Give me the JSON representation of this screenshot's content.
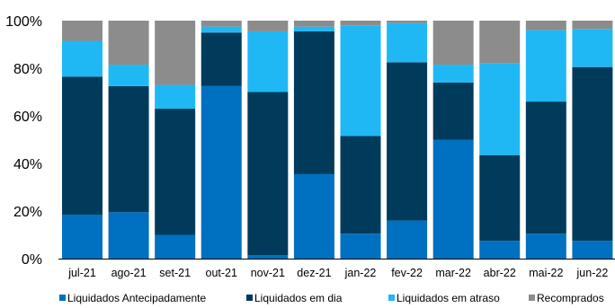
{
  "chart_data": {
    "type": "bar",
    "stacked": true,
    "percent_stacked": true,
    "categories": [
      "jul-21",
      "ago-21",
      "set-21",
      "out-21",
      "nov-21",
      "dez-21",
      "jan-22",
      "fev-22",
      "mar-22",
      "abr-22",
      "mai-22",
      "jun-22"
    ],
    "y_ticks": [
      "0%",
      "20%",
      "40%",
      "60%",
      "80%",
      "100%"
    ],
    "ylim": [
      0,
      100
    ],
    "grid": false,
    "legend_position": "bottom",
    "series": [
      {
        "name": "Liquidados Antecipadamente",
        "color": "#0070C0",
        "values": [
          18.5,
          19.5,
          10,
          72.5,
          1.5,
          35.5,
          10.5,
          16,
          50,
          7.5,
          10.5,
          7.5
        ]
      },
      {
        "name": "Liquidados em dia",
        "color": "#003B5C",
        "values": [
          58,
          53,
          53,
          22.5,
          68.5,
          60,
          41,
          66.5,
          24,
          36,
          55.5,
          73
        ]
      },
      {
        "name": "Liquidados em atraso",
        "color": "#1FB8F5",
        "values": [
          15,
          9,
          10,
          2.5,
          25.5,
          2,
          46.5,
          16.5,
          7.5,
          38.5,
          30,
          16
        ]
      },
      {
        "name": "Recomprados",
        "color": "#8C8C8C",
        "values": [
          8.5,
          18.5,
          27,
          2.5,
          4.5,
          2.5,
          2,
          1,
          18.5,
          18,
          4,
          3.5
        ]
      }
    ]
  }
}
